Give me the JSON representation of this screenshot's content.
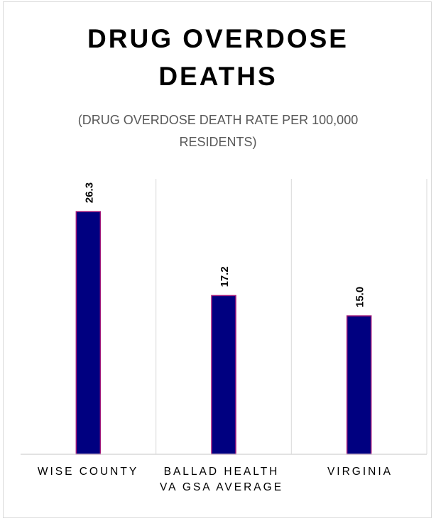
{
  "chart_data": {
    "type": "bar",
    "title": "DRUG OVERDOSE DEATHS",
    "subtitle": "(DRUG OVERDOSE DEATH RATE PER 100,000 RESIDENTS)",
    "categories": [
      "WISE COUNTY",
      "BALLAD HEALTH VA GSA AVERAGE",
      "VIRGINIA"
    ],
    "values": [
      26.3,
      17.2,
      15.0
    ],
    "data_labels": [
      "26.3",
      "17.2",
      "15.0"
    ],
    "xlabel": "",
    "ylabel": "",
    "ylim": [
      0,
      30
    ],
    "grid": "vertical category separators",
    "legend": "none",
    "colors": {
      "bar_fill": "#000080",
      "bar_edge": "#A0197A",
      "separator": "#d9d9d9"
    }
  }
}
